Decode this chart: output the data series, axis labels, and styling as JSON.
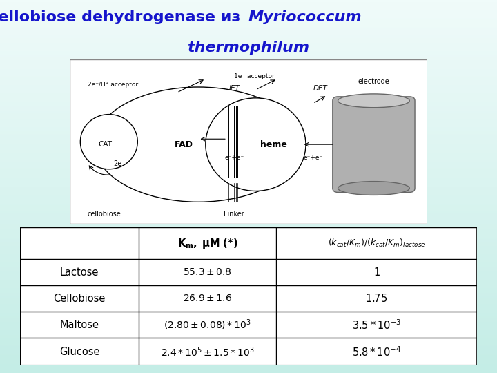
{
  "title_part1": "Cellobiose dehydrogenase из ",
  "title_italic": "Myriococcum",
  "title_line2": "thermophilum",
  "title_color": "#1515CC",
  "bg_color": "#C8F0E8",
  "bg_top_color": "#E8F8F4",
  "table_border_color": "#444444",
  "col_headers_col2": "K_m, μM (*)",
  "col_headers_col3": "(k_cat/K_m)/(k_cat/K_m)_lactose",
  "rows": [
    [
      "Lactose",
      "55.3 ± 0.8",
      "1"
    ],
    [
      "Cellobiose",
      "26.9 ± 1.6",
      "1.75"
    ],
    [
      "Maltose",
      "(2.80 ± 0.08)*10^3",
      "3.5*10^{-3}"
    ],
    [
      "Glucose",
      "2.4*10^5 ± 1.5*10^3",
      "5.8*10^{-4}"
    ]
  ]
}
